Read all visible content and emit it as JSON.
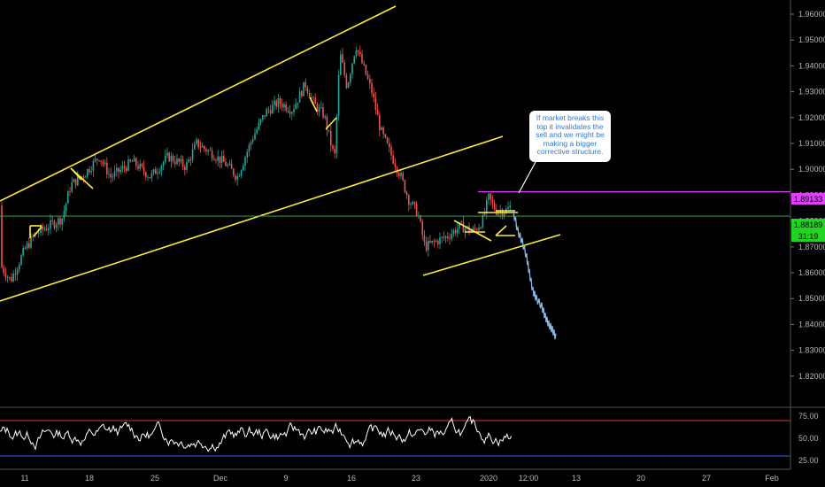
{
  "chart_data": {
    "type": "candlestick",
    "instrument_price_axis": {
      "ticks": [
        "1.96000",
        "1.95000",
        "1.94000",
        "1.93000",
        "1.92000",
        "1.91000",
        "1.90000",
        "1.89000",
        "1.88000",
        "1.87000",
        "1.86000",
        "1.85000",
        "1.84000",
        "1.83000",
        "1.82000"
      ],
      "ylim": [
        1.815,
        1.964
      ]
    },
    "x_ticks": [
      "11",
      "18",
      "25",
      "Dec",
      "9",
      "16",
      "23",
      "2020",
      "12:00",
      "13",
      "20",
      "27",
      "Feb"
    ],
    "price_labels": {
      "resistance": "1.89133",
      "current": "1.88189",
      "countdown": "31:19"
    },
    "levels": {
      "resistance": 1.89133,
      "current": 1.88189
    },
    "annotation": "If market breaks this top it invalidates the sell and we might be making a bigger corrective structure.",
    "rsi": {
      "ticks": [
        "75.00",
        "50.00",
        "25.00"
      ],
      "ylim": [
        15,
        85
      ],
      "overbought": 70,
      "oversold": 30
    },
    "colors": {
      "up": "#26a69a",
      "down": "#ef5350",
      "trendline": "#ffeb3b",
      "resistance": "#e040fb",
      "current": "#4caf50",
      "projection": "#8fb5e0",
      "rsi_line": "#ffffff",
      "rsi_upper": "#e53935",
      "rsi_lower": "#2962ff"
    }
  }
}
